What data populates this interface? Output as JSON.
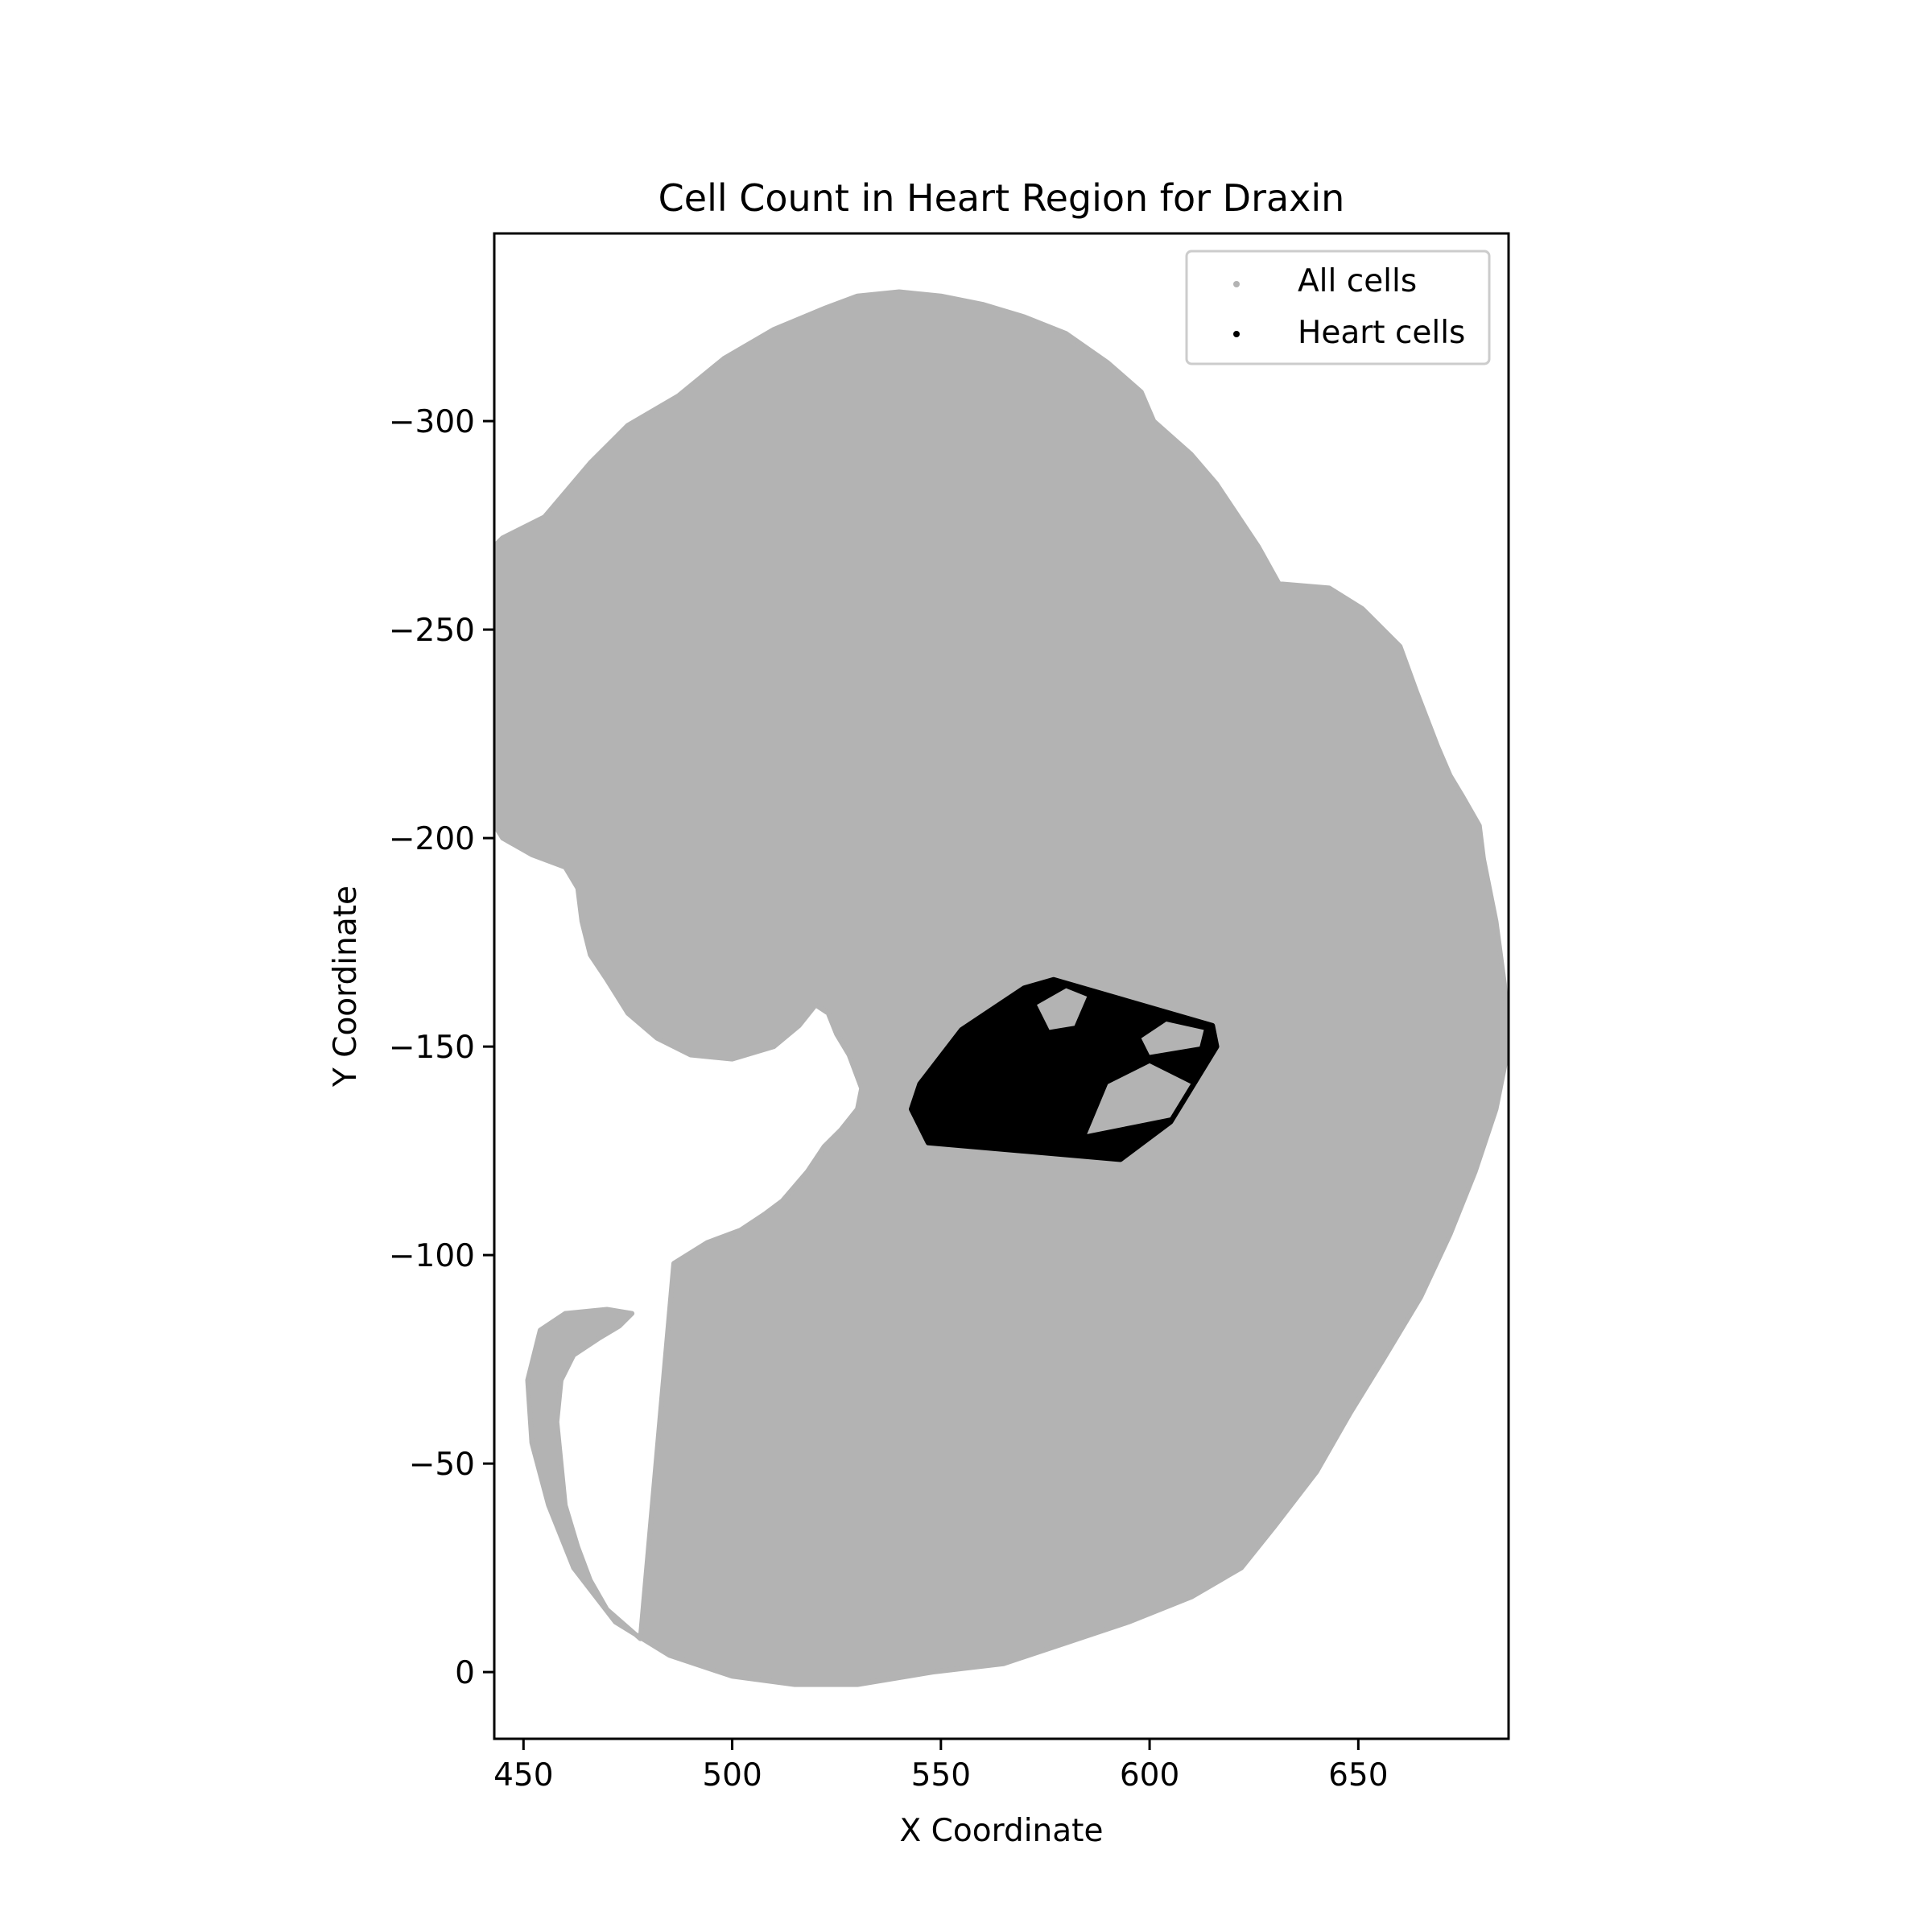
{
  "chart_data": {
    "type": "scatter",
    "title": "Cell Count in Heart Region for Draxin",
    "xlabel": "X Coordinate",
    "ylabel": "Y Coordinate",
    "xlim": [
      443,
      686
    ],
    "ylim": [
      16,
      -345
    ],
    "y_inverted": true,
    "x_ticks": [
      450,
      500,
      550,
      600,
      650
    ],
    "y_ticks": [
      -300,
      -250,
      -200,
      -150,
      -100,
      -50,
      0
    ],
    "legend": {
      "placement": "top-right",
      "entries": [
        {
          "label": "All cells",
          "color": "#b3b3b3"
        },
        {
          "label": "Heart cells",
          "color": "#000000"
        }
      ]
    },
    "series": [
      {
        "name": "All cells",
        "color": "#b3b3b3",
        "region_outline": [
          [
            455,
            -277
          ],
          [
            466,
            -290
          ],
          [
            475,
            -299
          ],
          [
            487,
            -306
          ],
          [
            498,
            -315
          ],
          [
            510,
            -322
          ],
          [
            522,
            -327
          ],
          [
            530,
            -330
          ],
          [
            540,
            -331
          ],
          [
            550,
            -330
          ],
          [
            560,
            -328
          ],
          [
            570,
            -325
          ],
          [
            580,
            -321
          ],
          [
            590,
            -314
          ],
          [
            598,
            -307
          ],
          [
            601,
            -300
          ],
          [
            610,
            -292
          ],
          [
            616,
            -285
          ],
          [
            626,
            -270
          ],
          [
            631,
            -261
          ],
          [
            643,
            -260
          ],
          [
            651,
            -255
          ],
          [
            660,
            -246
          ],
          [
            664,
            -235
          ],
          [
            669,
            -222
          ],
          [
            672,
            -215
          ],
          [
            675,
            -210
          ],
          [
            679,
            -203
          ],
          [
            680,
            -195
          ],
          [
            683,
            -180
          ],
          [
            685,
            -165
          ],
          [
            686,
            -150
          ],
          [
            683,
            -135
          ],
          [
            678,
            -120
          ],
          [
            672,
            -105
          ],
          [
            665,
            -90
          ],
          [
            656,
            -75
          ],
          [
            648,
            -62
          ],
          [
            640,
            -48
          ],
          [
            630,
            -35
          ],
          [
            622,
            -25
          ],
          [
            610,
            -18
          ],
          [
            595,
            -12
          ],
          [
            580,
            -7
          ],
          [
            565,
            -2
          ],
          [
            548,
            0
          ],
          [
            530,
            3
          ],
          [
            515,
            3
          ],
          [
            500,
            1
          ],
          [
            485,
            -4
          ],
          [
            472,
            -12
          ],
          [
            462,
            -25
          ],
          [
            456,
            -40
          ],
          [
            452,
            -55
          ],
          [
            451,
            -70
          ],
          [
            454,
            -82
          ],
          [
            460,
            -86
          ],
          [
            470,
            -87
          ],
          [
            476,
            -86
          ],
          [
            473,
            -83
          ],
          [
            468,
            -80
          ],
          [
            462,
            -76
          ],
          [
            459,
            -70
          ],
          [
            458,
            -60
          ],
          [
            459,
            -50
          ],
          [
            460,
            -40
          ],
          [
            463,
            -30
          ],
          [
            466,
            -22
          ],
          [
            470,
            -15
          ],
          [
            478,
            -8
          ],
          [
            486,
            -98
          ],
          [
            494,
            -103
          ],
          [
            502,
            -106
          ],
          [
            508,
            -110
          ],
          [
            512,
            -113
          ],
          [
            518,
            -120
          ],
          [
            522,
            -126
          ],
          [
            526,
            -130
          ],
          [
            530,
            -135
          ],
          [
            531,
            -140
          ],
          [
            528,
            -148
          ],
          [
            525,
            -153
          ],
          [
            523,
            -158
          ],
          [
            520,
            -160
          ],
          [
            516,
            -155
          ],
          [
            510,
            -150
          ],
          [
            500,
            -147
          ],
          [
            490,
            -148
          ],
          [
            482,
            -152
          ],
          [
            475,
            -158
          ],
          [
            470,
            -166
          ],
          [
            466,
            -172
          ],
          [
            464,
            -180
          ],
          [
            463,
            -188
          ],
          [
            460,
            -193
          ],
          [
            452,
            -196
          ],
          [
            445,
            -200
          ],
          [
            440,
            -208
          ],
          [
            436,
            -220
          ],
          [
            433,
            -230
          ],
          [
            432,
            -242
          ],
          [
            434,
            -255
          ],
          [
            438,
            -265
          ],
          [
            445,
            -272
          ]
        ]
      },
      {
        "name": "Heart cells",
        "color": "#000000",
        "hull": [
          [
            543,
            -135
          ],
          [
            547,
            -127
          ],
          [
            593,
            -123
          ],
          [
            605,
            -132
          ],
          [
            616,
            -150
          ],
          [
            615,
            -155
          ],
          [
            577,
            -166
          ],
          [
            570,
            -164
          ],
          [
            555,
            -154
          ],
          [
            545,
            -141
          ]
        ]
      }
    ]
  }
}
